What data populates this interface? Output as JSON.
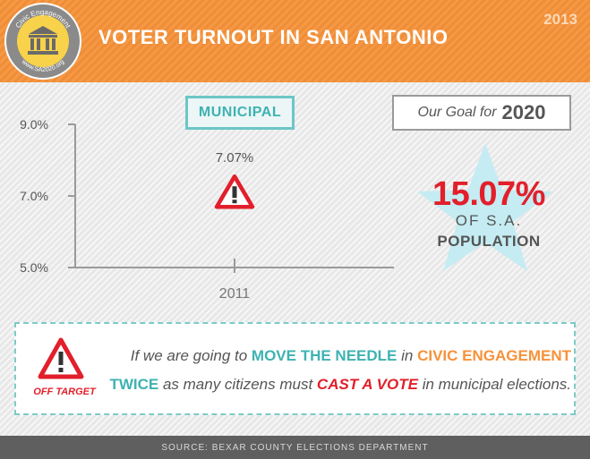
{
  "header": {
    "title": "VOTER TURNOUT IN SAN ANTONIO",
    "year": "2013",
    "logo": {
      "top_text": "Civic Engagement",
      "bottom_text": "www.SA2020.org",
      "icon": "government-building-icon"
    },
    "background_color": "#f6923a"
  },
  "chart_data": {
    "type": "line",
    "title": "MUNICIPAL",
    "categories": [
      "2011"
    ],
    "series": [
      {
        "values": [
          7.07
        ],
        "data_labels": [
          "7.07%"
        ],
        "marker": "warning-triangle"
      }
    ],
    "ylim": [
      5.0,
      9.0
    ],
    "yticks": [
      5.0,
      7.0,
      9.0
    ],
    "ytick_labels": [
      "5.0%",
      "7.0%",
      "9.0%"
    ],
    "xlabel": "",
    "ylabel": "",
    "grid": false,
    "legend": "none"
  },
  "goal": {
    "label": "Our Goal for",
    "year": "2020",
    "value": "15.07%",
    "line1": "OF S.A.",
    "line2": "POPULATION",
    "star_color": "#bfeaf0",
    "value_color": "#e21f2b"
  },
  "message": {
    "badge": "OFF TARGET",
    "badge_icon": "warning-triangle-icon",
    "line1": {
      "part1": "If we are going to",
      "highlight1": "MOVE THE NEEDLE",
      "part2": "in",
      "highlight2": "CIVIC ENGAGEMENT"
    },
    "line2": {
      "highlight1": "TWICE",
      "part1": "as many citizens must",
      "highlight2": "CAST A VOTE",
      "part2": "in municipal elections."
    },
    "colors": {
      "teal": "#3fb2b2",
      "orange": "#f6923a",
      "red": "#e21f2b"
    }
  },
  "footer": {
    "source": "SOURCE: BEXAR COUNTY ELECTIONS DEPARTMENT"
  }
}
